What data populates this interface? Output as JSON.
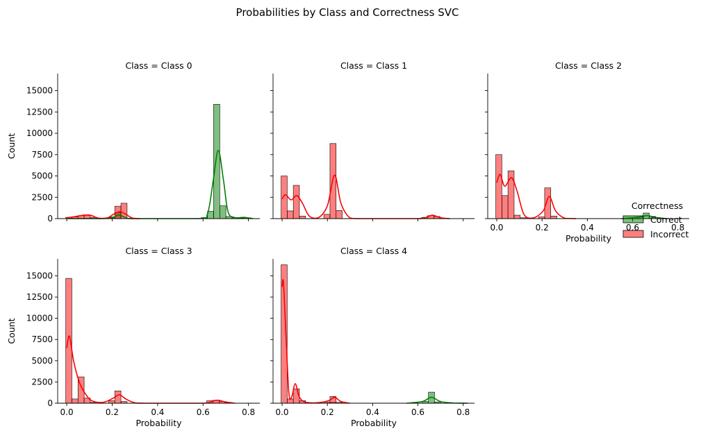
{
  "chart_data": {
    "type": "histogram",
    "title": "Probabilities by Class and Correctness SVC",
    "xlabel": "Probability",
    "ylabel": "Count",
    "xlim": [
      -0.04,
      0.85
    ],
    "ylim": [
      0,
      17000
    ],
    "x_ticks": [
      0.0,
      0.2,
      0.4,
      0.6,
      0.8
    ],
    "x_tick_labels": [
      "0.0",
      "0.2",
      "0.4",
      "0.6",
      "0.8"
    ],
    "y_ticks": [
      0,
      2500,
      5000,
      7500,
      10000,
      12500,
      15000
    ],
    "y_tick_labels": [
      "0",
      "2500",
      "5000",
      "7500",
      "10000",
      "12500",
      "15000"
    ],
    "bin_width": 0.027,
    "kde": true,
    "legend": {
      "title": "Correctness",
      "placement": "right",
      "entries": [
        {
          "label": "Correct",
          "color": "#008000"
        },
        {
          "label": "Incorrect",
          "color": "#ff0000"
        }
      ]
    },
    "panels": [
      {
        "title": "Class = Class 0",
        "series": [
          {
            "name": "Correct",
            "color": "#008000",
            "bins": [
              [
                0.66,
                13400
              ],
              [
                0.633,
                850
              ],
              [
                0.687,
                1500
              ],
              [
                0.606,
                120
              ],
              [
                0.714,
                250
              ],
              [
                0.741,
                100
              ],
              [
                0.768,
                50
              ],
              [
                0.795,
                30
              ],
              [
                0.225,
                700
              ],
              [
                0.198,
                150
              ]
            ],
            "kde": [
              [
                0.0,
                0
              ],
              [
                0.15,
                0
              ],
              [
                0.2,
                120
              ],
              [
                0.23,
                420
              ],
              [
                0.26,
                120
              ],
              [
                0.3,
                0
              ],
              [
                0.58,
                0
              ],
              [
                0.62,
                600
              ],
              [
                0.645,
                4500
              ],
              [
                0.667,
                8000
              ],
              [
                0.69,
                4500
              ],
              [
                0.71,
                800
              ],
              [
                0.74,
                120
              ],
              [
                0.78,
                150
              ],
              [
                0.82,
                0
              ]
            ]
          },
          {
            "name": "Incorrect",
            "color": "#ff0000",
            "bins": [
              [
                0.009,
                150
              ],
              [
                0.036,
                200
              ],
              [
                0.063,
                350
              ],
              [
                0.09,
                450
              ],
              [
                0.117,
                150
              ],
              [
                0.225,
                1450
              ],
              [
                0.252,
                1800
              ],
              [
                0.198,
                200
              ]
            ],
            "kde": [
              [
                0.0,
                100
              ],
              [
                0.04,
                250
              ],
              [
                0.08,
                420
              ],
              [
                0.11,
                350
              ],
              [
                0.14,
                60
              ],
              [
                0.18,
                100
              ],
              [
                0.205,
                500
              ],
              [
                0.235,
                820
              ],
              [
                0.26,
                500
              ],
              [
                0.29,
                60
              ],
              [
                0.32,
                0
              ]
            ]
          }
        ]
      },
      {
        "title": "Class = Class 1",
        "series": [
          {
            "name": "Correct",
            "color": "#008000",
            "bins": [],
            "kde": []
          },
          {
            "name": "Incorrect",
            "color": "#ff0000",
            "bins": [
              [
                0.009,
                5000
              ],
              [
                0.036,
                900
              ],
              [
                0.063,
                3900
              ],
              [
                0.09,
                300
              ],
              [
                0.198,
                500
              ],
              [
                0.225,
                8800
              ],
              [
                0.252,
                950
              ],
              [
                0.63,
                150
              ],
              [
                0.657,
                350
              ],
              [
                0.684,
                250
              ]
            ],
            "kde": [
              [
                0.0,
                2300
              ],
              [
                0.015,
                2800
              ],
              [
                0.04,
                2200
              ],
              [
                0.065,
                2700
              ],
              [
                0.09,
                1800
              ],
              [
                0.12,
                300
              ],
              [
                0.16,
                100
              ],
              [
                0.2,
                1500
              ],
              [
                0.232,
                5100
              ],
              [
                0.26,
                1800
              ],
              [
                0.3,
                80
              ],
              [
                0.35,
                0
              ],
              [
                0.6,
                0
              ],
              [
                0.64,
                200
              ],
              [
                0.665,
                400
              ],
              [
                0.7,
                100
              ],
              [
                0.74,
                0
              ]
            ]
          }
        ]
      },
      {
        "title": "Class = Class 2",
        "series": [
          {
            "name": "Correct",
            "color": "#008000",
            "bins": [
              [
                0.66,
                650
              ],
              [
                0.633,
                200
              ],
              [
                0.687,
                250
              ]
            ],
            "kde": [
              [
                0.55,
                0
              ],
              [
                0.62,
                150
              ],
              [
                0.665,
                350
              ],
              [
                0.7,
                150
              ],
              [
                0.75,
                0
              ]
            ]
          },
          {
            "name": "Incorrect",
            "color": "#ff0000",
            "bins": [
              [
                0.009,
                7500
              ],
              [
                0.036,
                2700
              ],
              [
                0.063,
                5600
              ],
              [
                0.09,
                400
              ],
              [
                0.117,
                100
              ],
              [
                0.198,
                200
              ],
              [
                0.225,
                3600
              ],
              [
                0.252,
                300
              ]
            ],
            "kde": [
              [
                0.0,
                4200
              ],
              [
                0.015,
                5200
              ],
              [
                0.035,
                3800
              ],
              [
                0.065,
                4800
              ],
              [
                0.09,
                3200
              ],
              [
                0.12,
                500
              ],
              [
                0.16,
                80
              ],
              [
                0.205,
                900
              ],
              [
                0.232,
                2600
              ],
              [
                0.26,
                900
              ],
              [
                0.3,
                50
              ],
              [
                0.35,
                0
              ]
            ]
          }
        ]
      },
      {
        "title": "Class = Class 3",
        "series": [
          {
            "name": "Correct",
            "color": "#008000",
            "bins": [],
            "kde": []
          },
          {
            "name": "Incorrect",
            "color": "#ff0000",
            "bins": [
              [
                0.009,
                14700
              ],
              [
                0.036,
                500
              ],
              [
                0.063,
                3100
              ],
              [
                0.09,
                600
              ],
              [
                0.117,
                100
              ],
              [
                0.198,
                300
              ],
              [
                0.225,
                1450
              ],
              [
                0.252,
                200
              ],
              [
                0.63,
                300
              ],
              [
                0.657,
                350
              ],
              [
                0.684,
                200
              ],
              [
                0.711,
                80
              ]
            ],
            "kde": [
              [
                0.0,
                6500
              ],
              [
                0.012,
                7900
              ],
              [
                0.03,
                5000
              ],
              [
                0.055,
                2500
              ],
              [
                0.08,
                1200
              ],
              [
                0.11,
                300
              ],
              [
                0.16,
                100
              ],
              [
                0.205,
                600
              ],
              [
                0.232,
                1000
              ],
              [
                0.26,
                500
              ],
              [
                0.3,
                50
              ],
              [
                0.35,
                0
              ],
              [
                0.6,
                0
              ],
              [
                0.64,
                250
              ],
              [
                0.665,
                350
              ],
              [
                0.7,
                150
              ],
              [
                0.74,
                0
              ]
            ]
          }
        ]
      },
      {
        "title": "Class = Class 4",
        "series": [
          {
            "name": "Correct",
            "color": "#008000",
            "bins": [
              [
                0.66,
                1300
              ],
              [
                0.633,
                200
              ],
              [
                0.687,
                150
              ],
              [
                0.225,
                100
              ]
            ],
            "kde": [
              [
                0.55,
                0
              ],
              [
                0.62,
                200
              ],
              [
                0.66,
                700
              ],
              [
                0.7,
                200
              ],
              [
                0.76,
                20
              ],
              [
                0.82,
                0
              ]
            ]
          },
          {
            "name": "Incorrect",
            "color": "#ff0000",
            "bins": [
              [
                0.009,
                16300
              ],
              [
                0.036,
                500
              ],
              [
                0.063,
                1700
              ],
              [
                0.09,
                300
              ],
              [
                0.225,
                800
              ],
              [
                0.198,
                150
              ],
              [
                0.252,
                100
              ]
            ],
            "kde": [
              [
                0.0,
                13700
              ],
              [
                0.006,
                14200
              ],
              [
                0.018,
                7500
              ],
              [
                0.03,
                1200
              ],
              [
                0.042,
                700
              ],
              [
                0.058,
                2300
              ],
              [
                0.075,
                800
              ],
              [
                0.1,
                150
              ],
              [
                0.15,
                50
              ],
              [
                0.205,
                300
              ],
              [
                0.232,
                700
              ],
              [
                0.26,
                200
              ],
              [
                0.3,
                0
              ]
            ]
          }
        ]
      }
    ]
  }
}
